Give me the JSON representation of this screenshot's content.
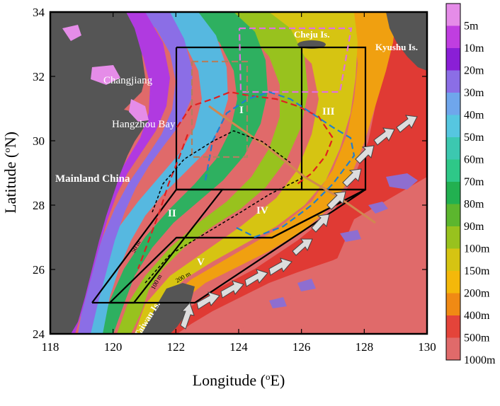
{
  "axes": {
    "xlabel": "Longitude (oE)",
    "ylabel": "Latitude (oN)",
    "xticks": [
      "118",
      "120",
      "122",
      "124",
      "126",
      "128",
      "130"
    ],
    "yticks": [
      "24",
      "26",
      "28",
      "30",
      "32",
      "34"
    ]
  },
  "labels": {
    "changjiang": "Changjiang",
    "hangzhou_bay": "Hangzhou Bay",
    "mainland_china": "Mainland China",
    "cheju": "Cheju Is.",
    "kyushu": "Kyushu Is.",
    "taiwan": "Taiwan Is.",
    "region_1": "I",
    "region_2": "II",
    "region_3": "III",
    "region_4": "IV",
    "region_5": "V",
    "iso_50": "50 m",
    "iso_100": "100 m",
    "iso_200": "200 m"
  },
  "colorbar": {
    "levels": [
      "5m",
      "10m",
      "20m",
      "30m",
      "40m",
      "50m",
      "60m",
      "70m",
      "80m",
      "90m",
      "100m",
      "150m",
      "200m",
      "400m",
      "500m",
      "1000m"
    ],
    "colors": [
      "#e58ce8",
      "#c03ee0",
      "#8a1fd6",
      "#8b6ee6",
      "#6fa6ec",
      "#56c6e0",
      "#3cc8b0",
      "#2ec888",
      "#22b050",
      "#5cb62e",
      "#98c21e",
      "#d6c412",
      "#f4b80a",
      "#f08a14",
      "#e4443a",
      "#e06a6a"
    ]
  },
  "chart_data": {
    "type": "map",
    "x_range": [
      118,
      130
    ],
    "y_range": [
      24,
      34
    ],
    "regions": [
      "I",
      "II",
      "III",
      "IV",
      "V"
    ],
    "features": [
      "Changjiang",
      "Hangzhou Bay",
      "Mainland China",
      "Cheju Is.",
      "Kyushu Is.",
      "Taiwan Is."
    ]
  }
}
